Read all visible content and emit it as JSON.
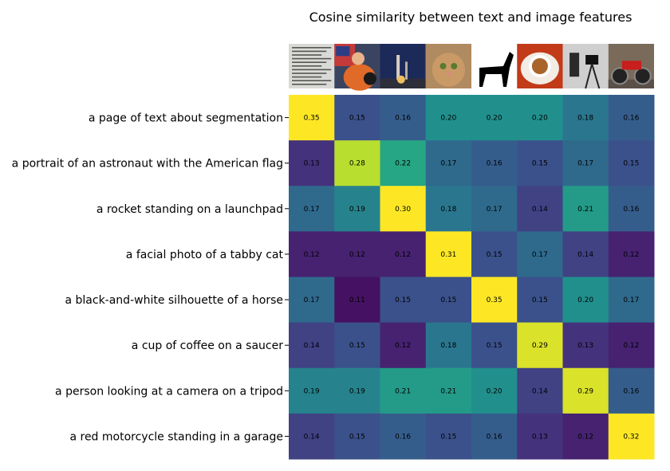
{
  "chart_data": {
    "type": "heatmap",
    "title": "Cosine similarity between text and image features",
    "rows": [
      "a page of text about segmentation",
      "a portrait of an astronaut with the American flag",
      "a rocket standing on a launchpad",
      "a facial photo of a tabby cat",
      "a black-and-white silhouette of a horse",
      "a cup of coffee on a saucer",
      "a person looking at a camera on a tripod",
      "a red motorcycle standing in a garage"
    ],
    "columns": [
      "page-of-text-image",
      "astronaut-image",
      "rocket-image",
      "cat-image",
      "horse-image",
      "coffee-image",
      "camera-image",
      "motorcycle-image"
    ],
    "values": [
      [
        0.35,
        0.15,
        0.16,
        0.2,
        0.2,
        0.2,
        0.18,
        0.16
      ],
      [
        0.13,
        0.28,
        0.22,
        0.17,
        0.16,
        0.15,
        0.17,
        0.15
      ],
      [
        0.17,
        0.19,
        0.3,
        0.18,
        0.17,
        0.14,
        0.21,
        0.16
      ],
      [
        0.12,
        0.12,
        0.12,
        0.31,
        0.15,
        0.17,
        0.14,
        0.12
      ],
      [
        0.17,
        0.11,
        0.15,
        0.15,
        0.35,
        0.15,
        0.2,
        0.17
      ],
      [
        0.14,
        0.15,
        0.12,
        0.18,
        0.15,
        0.29,
        0.13,
        0.12
      ],
      [
        0.19,
        0.19,
        0.21,
        0.21,
        0.2,
        0.14,
        0.29,
        0.16
      ],
      [
        0.14,
        0.15,
        0.16,
        0.15,
        0.16,
        0.13,
        0.12,
        0.32
      ]
    ],
    "colormap": "viridis",
    "vmin": 0.1,
    "vmax": 0.3,
    "grid": false,
    "colors": {
      "background": "#ffffff",
      "text": "#000000"
    }
  }
}
